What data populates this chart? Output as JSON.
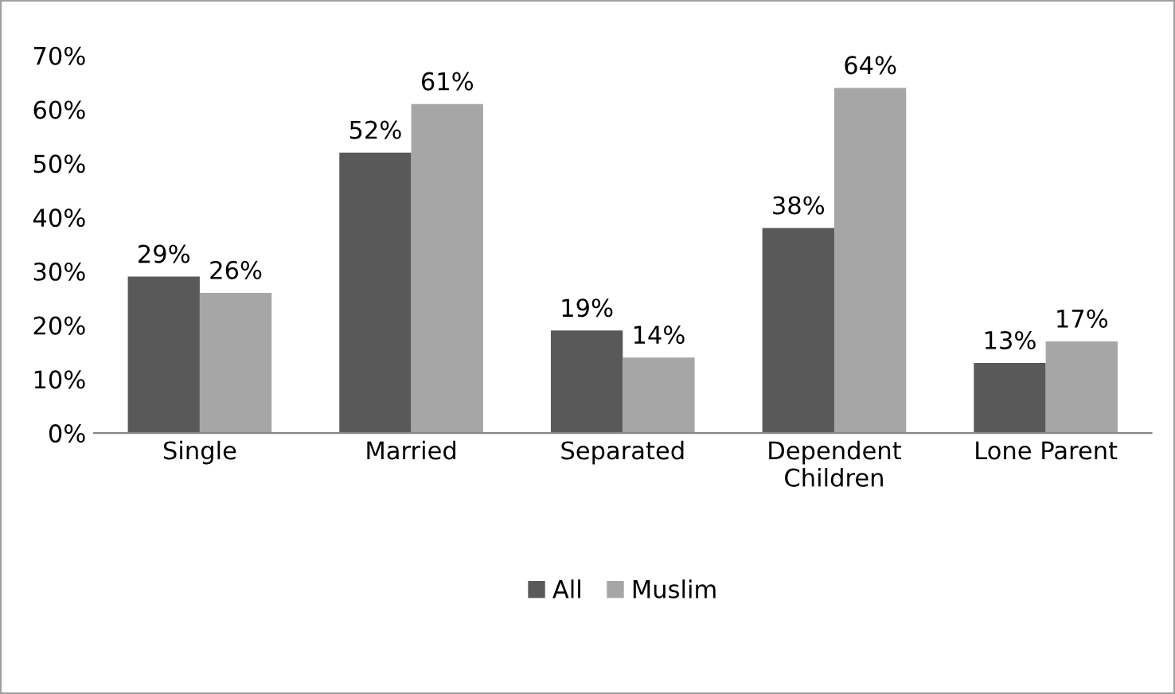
{
  "chart_data": {
    "type": "bar",
    "categories": [
      "Single",
      "Married",
      "Separated",
      "Dependent Children",
      "Lone Parent"
    ],
    "series": [
      {
        "name": "All",
        "color": "#595959",
        "values": [
          29,
          52,
          19,
          38,
          13
        ],
        "value_labels": [
          "29%",
          "52%",
          "19%",
          "38%",
          "13%"
        ]
      },
      {
        "name": "Muslim",
        "color": "#a6a6a6",
        "values": [
          26,
          61,
          14,
          64,
          17
        ],
        "value_labels": [
          "26%",
          "61%",
          "14%",
          "64%",
          "17%"
        ]
      }
    ],
    "ylim": [
      0,
      70
    ],
    "yticks": [
      {
        "value": 0,
        "label": "0%"
      },
      {
        "value": 10,
        "label": "10%"
      },
      {
        "value": 20,
        "label": "20%"
      },
      {
        "value": 30,
        "label": "30%"
      },
      {
        "value": 40,
        "label": "40%"
      },
      {
        "value": 50,
        "label": "50%"
      },
      {
        "value": 60,
        "label": "60%"
      },
      {
        "value": 70,
        "label": "70%"
      }
    ],
    "grid": false,
    "legend": "bottom"
  }
}
